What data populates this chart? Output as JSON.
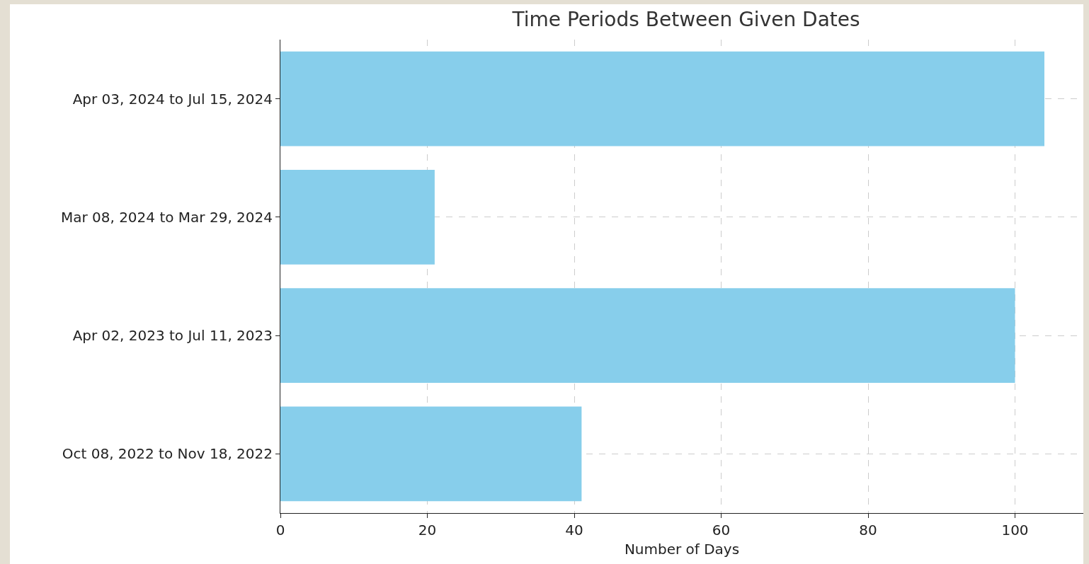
{
  "chart_data": {
    "type": "bar",
    "orientation": "horizontal",
    "title": "Time Periods Between Given Dates",
    "xlabel": "Number of Days",
    "categories": [
      "Apr 03, 2024 to Jul 15, 2024",
      "Mar 08, 2024 to Mar 29, 2024",
      "Apr 02, 2023 to Jul 11, 2023",
      "Oct 08, 2022 to Nov 18, 2022"
    ],
    "values": [
      104,
      21,
      100,
      41
    ],
    "color": "#87ceeb",
    "xlim": [
      0,
      109.3
    ],
    "xticks": [
      0,
      20,
      40,
      60,
      80,
      100
    ],
    "grid": true,
    "line_style": "dashed"
  }
}
